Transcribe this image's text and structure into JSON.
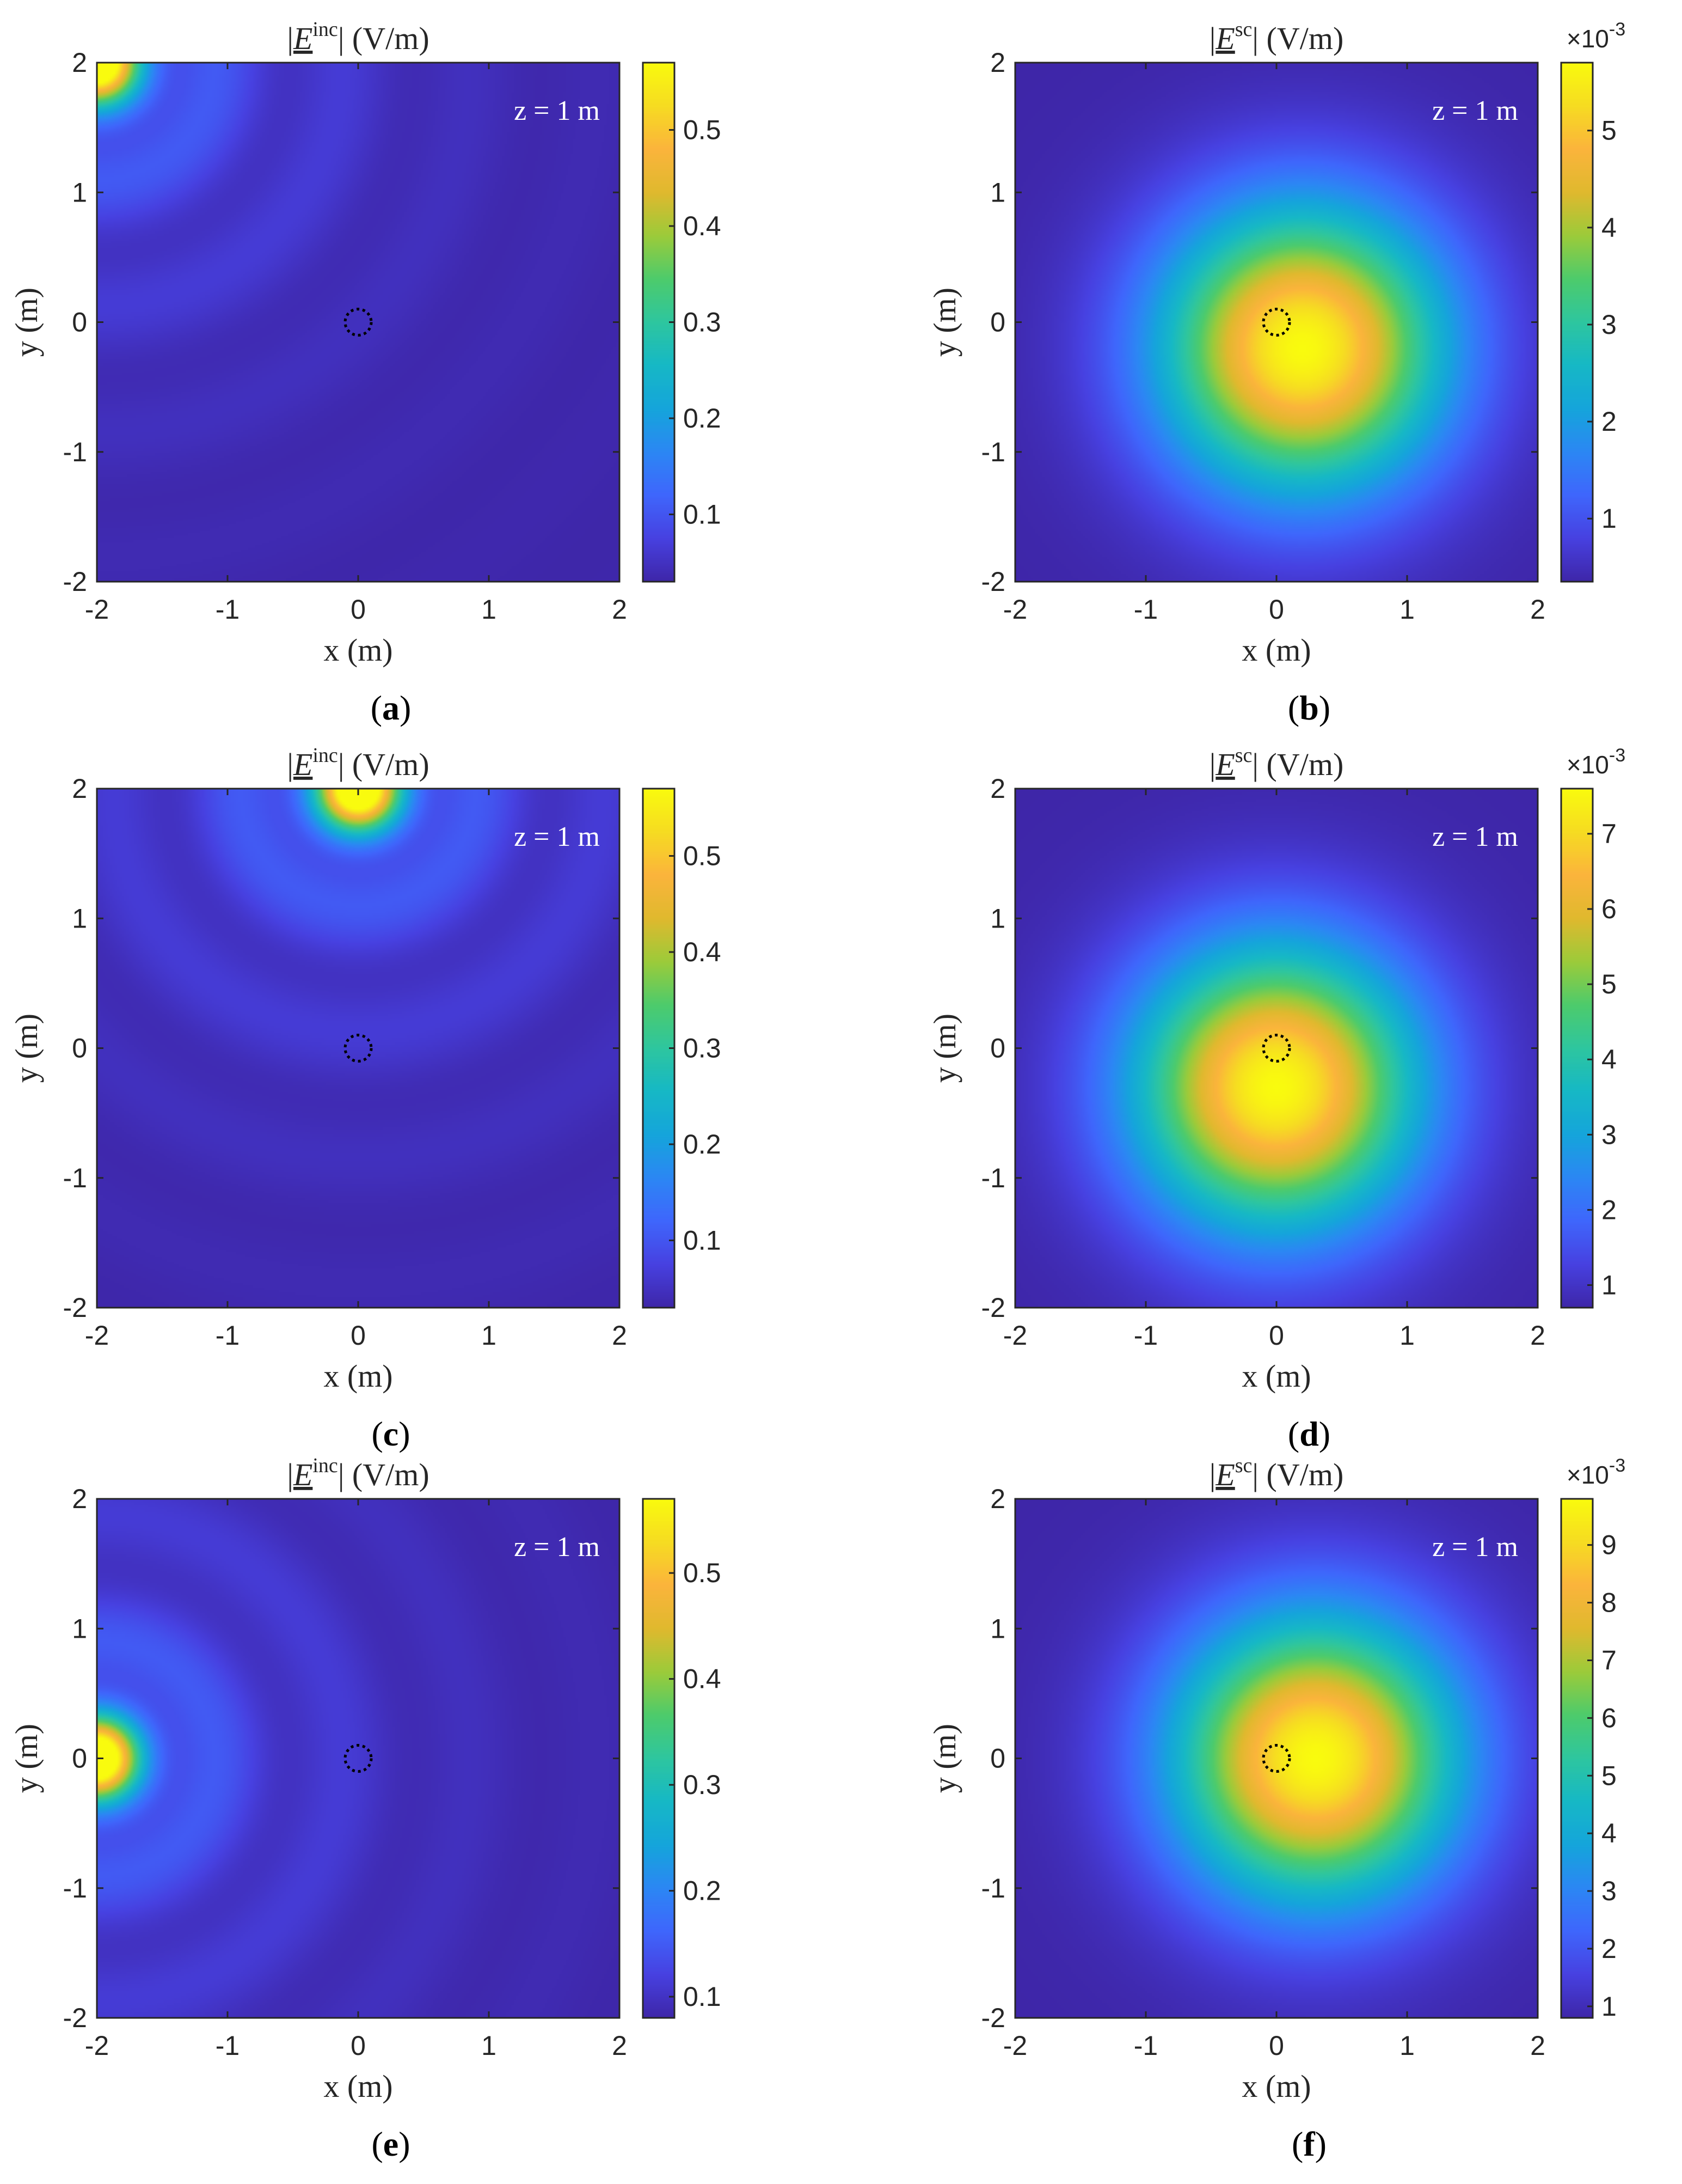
{
  "figure": {
    "colormap": [
      "#3e26a8",
      "#4741e1",
      "#3f66fc",
      "#2c87f4",
      "#15a5db",
      "#16b8c6",
      "#2ec69f",
      "#4dcb6c",
      "#9ccb3a",
      "#e0b92e",
      "#fbb43c",
      "#f6dc22",
      "#f9fb0e"
    ]
  },
  "chart_data": [
    {
      "panel_label": "a",
      "type": "heatmap",
      "title_symbol": "E",
      "title_superscript": "inc",
      "title_unit": "(V/m)",
      "xlabel": "x (m)",
      "ylabel": "y (m)",
      "annotation": "z = 1 m",
      "x_ticks": [
        "-2",
        "-1",
        "0",
        "1",
        "2"
      ],
      "y_ticks": [
        "-2",
        "-1",
        "0",
        "1",
        "2"
      ],
      "xlim": [
        -2,
        2
      ],
      "ylim": [
        -2,
        2
      ],
      "colorbar": {
        "ticks": [
          "0.1",
          "0.2",
          "0.3",
          "0.4",
          "0.5"
        ],
        "range": [
          0.03,
          0.57
        ],
        "exponent": ""
      },
      "field": {
        "kind": "incident",
        "source": [
          -2,
          2
        ],
        "max": 0.57,
        "min": 0.03
      },
      "marker": {
        "x": 0,
        "y": 0,
        "radius": 0.1,
        "style": "dotted"
      }
    },
    {
      "panel_label": "b",
      "type": "heatmap",
      "title_symbol": "E",
      "title_superscript": "sc",
      "title_unit": "(V/m)",
      "xlabel": "x (m)",
      "ylabel": "y (m)",
      "annotation": "z = 1 m",
      "x_ticks": [
        "-2",
        "-1",
        "0",
        "1",
        "2"
      ],
      "y_ticks": [
        "-2",
        "-1",
        "0",
        "1",
        "2"
      ],
      "xlim": [
        -2,
        2
      ],
      "ylim": [
        -2,
        2
      ],
      "colorbar": {
        "ticks": [
          "1",
          "2",
          "3",
          "4",
          "5"
        ],
        "range": [
          0.35,
          5.7
        ],
        "exponent": "×10-3"
      },
      "field": {
        "kind": "scattered",
        "center": [
          0.2,
          -0.2
        ],
        "peak": 5.7,
        "min": 0.35
      },
      "marker": {
        "x": 0,
        "y": 0,
        "radius": 0.1,
        "style": "dotted"
      }
    },
    {
      "panel_label": "c",
      "type": "heatmap",
      "title_symbol": "E",
      "title_superscript": "inc",
      "title_unit": "(V/m)",
      "xlabel": "x (m)",
      "ylabel": "y (m)",
      "annotation": "z = 1 m",
      "x_ticks": [
        "-2",
        "-1",
        "0",
        "1",
        "2"
      ],
      "y_ticks": [
        "-2",
        "-1",
        "0",
        "1",
        "2"
      ],
      "xlim": [
        -2,
        2
      ],
      "ylim": [
        -2,
        2
      ],
      "colorbar": {
        "ticks": [
          "0.1",
          "0.2",
          "0.3",
          "0.4",
          "0.5"
        ],
        "range": [
          0.03,
          0.57
        ],
        "exponent": ""
      },
      "field": {
        "kind": "incident",
        "source": [
          0,
          2
        ],
        "max": 0.57,
        "min": 0.03
      },
      "marker": {
        "x": 0,
        "y": 0,
        "radius": 0.1,
        "style": "dotted"
      }
    },
    {
      "panel_label": "d",
      "type": "heatmap",
      "title_symbol": "E",
      "title_superscript": "sc",
      "title_unit": "(V/m)",
      "xlabel": "x (m)",
      "ylabel": "y (m)",
      "annotation": "z = 1 m",
      "x_ticks": [
        "-2",
        "-1",
        "0",
        "1",
        "2"
      ],
      "y_ticks": [
        "-2",
        "-1",
        "0",
        "1",
        "2"
      ],
      "xlim": [
        -2,
        2
      ],
      "ylim": [
        -2,
        2
      ],
      "colorbar": {
        "ticks": [
          "1",
          "2",
          "3",
          "4",
          "5",
          "6",
          "7"
        ],
        "range": [
          0.7,
          7.6
        ],
        "exponent": "×10-3"
      },
      "field": {
        "kind": "scattered",
        "center": [
          0,
          -0.3
        ],
        "peak": 7.6,
        "min": 0.7
      },
      "marker": {
        "x": 0,
        "y": 0,
        "radius": 0.1,
        "style": "dotted"
      }
    },
    {
      "panel_label": "e",
      "type": "heatmap",
      "title_symbol": "E",
      "title_superscript": "inc",
      "title_unit": "(V/m)",
      "xlabel": "x (m)",
      "ylabel": "y (m)",
      "annotation": "z = 1 m",
      "x_ticks": [
        "-2",
        "-1",
        "0",
        "1",
        "2"
      ],
      "y_ticks": [
        "-2",
        "-1",
        "0",
        "1",
        "2"
      ],
      "xlim": [
        -2,
        2
      ],
      "ylim": [
        -2,
        2
      ],
      "colorbar": {
        "ticks": [
          "0.1",
          "0.2",
          "0.3",
          "0.4",
          "0.5"
        ],
        "range": [
          0.08,
          0.57
        ],
        "exponent": ""
      },
      "field": {
        "kind": "incident",
        "source": [
          -2,
          0
        ],
        "max": 0.57,
        "min": 0.08
      },
      "marker": {
        "x": 0,
        "y": 0,
        "radius": 0.1,
        "style": "dotted"
      }
    },
    {
      "panel_label": "f",
      "type": "heatmap",
      "title_symbol": "E",
      "title_superscript": "sc",
      "title_unit": "(V/m)",
      "xlabel": "x (m)",
      "ylabel": "y (m)",
      "annotation": "z = 1 m",
      "x_ticks": [
        "-2",
        "-1",
        "0",
        "1",
        "2"
      ],
      "y_ticks": [
        "-2",
        "-1",
        "0",
        "1",
        "2"
      ],
      "xlim": [
        -2,
        2
      ],
      "ylim": [
        -2,
        2
      ],
      "colorbar": {
        "ticks": [
          "1",
          "2",
          "3",
          "4",
          "5",
          "6",
          "7",
          "8",
          "9"
        ],
        "range": [
          0.8,
          9.8
        ],
        "exponent": "×10-3"
      },
      "field": {
        "kind": "scattered",
        "center": [
          0.3,
          0
        ],
        "peak": 9.8,
        "min": 0.8
      },
      "marker": {
        "x": 0,
        "y": 0,
        "radius": 0.1,
        "style": "dotted"
      }
    }
  ]
}
